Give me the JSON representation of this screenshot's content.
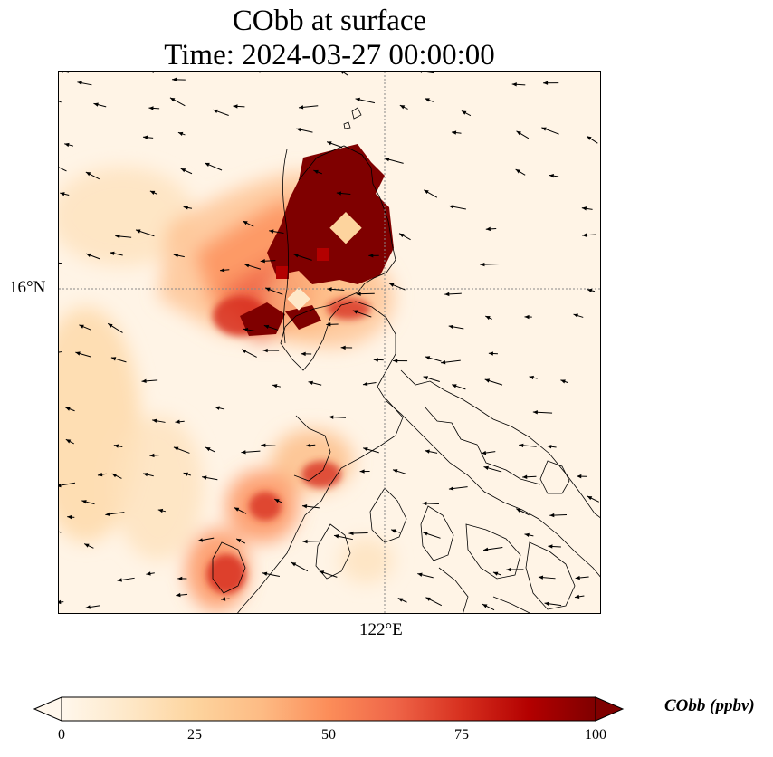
{
  "title": {
    "line1": "CObb at surface",
    "line2": "Time: 2024-03-27 00:00:00"
  },
  "axes": {
    "lat_label": "16°N",
    "lon_label": "122°E"
  },
  "colorbar": {
    "label": "CObb (ppbv)",
    "ticks": [
      "0",
      "25",
      "50",
      "75",
      "100"
    ],
    "range": [
      0,
      100
    ],
    "extend": "both",
    "colormap": [
      "#fff7ec",
      "#fee8c8",
      "#fdd49e",
      "#fdbb84",
      "#fc8d59",
      "#ef6548",
      "#d7301f",
      "#b30000",
      "#7f0000"
    ]
  },
  "map": {
    "background_color": "#fff4e6",
    "coastline_color": "#000000",
    "gridline_color": "#888888"
  }
}
